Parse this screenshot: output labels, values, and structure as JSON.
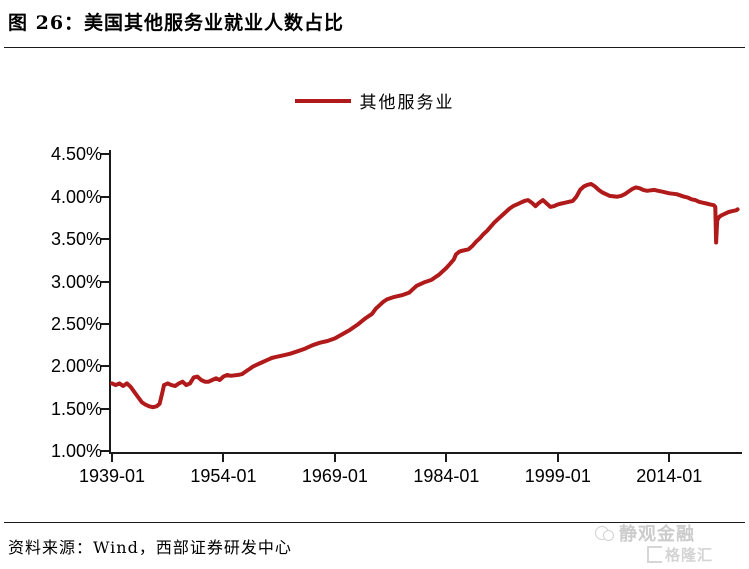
{
  "header": {
    "title": "图 26：美国其他服务业就业人数占比"
  },
  "legend": {
    "label": "其他服务业",
    "line_color": "#b01a1a"
  },
  "footer": {
    "source": "资料来源：Wind，西部证券研发中心"
  },
  "watermark": {
    "brand1": "静观金融",
    "brand2": "格隆汇"
  },
  "chart_data": {
    "type": "line",
    "title": "美国其他服务业就业人数占比",
    "xlabel": "",
    "ylabel": "",
    "grid": false,
    "legend_position": "top-center",
    "line_color": "#b01a1a",
    "y_ticks": [
      4.5,
      4.0,
      3.5,
      3.0,
      2.5,
      2.0,
      1.5,
      1.0
    ],
    "y_tick_labels": [
      "4.50%",
      "4.00%",
      "3.50%",
      "3.00%",
      "2.50%",
      "2.00%",
      "1.50%",
      "1.00%"
    ],
    "ylim": [
      1.0,
      4.5
    ],
    "x_tick_years": [
      1939,
      1954,
      1969,
      1984,
      1999,
      2014
    ],
    "x_tick_labels": [
      "1939-01",
      "1954-01",
      "1969-01",
      "1984-01",
      "1999-01",
      "2014-01"
    ],
    "xlim": [
      1939,
      2023.6
    ],
    "series": [
      {
        "name": "其他服务业",
        "unit": "percent of total employment",
        "x": [
          1939,
          1939.5,
          1940,
          1940.5,
          1941,
          1941.5,
          1942,
          1942.5,
          1943,
          1943.5,
          1944,
          1944.5,
          1945,
          1945.4,
          1945.8,
          1946,
          1946.5,
          1947,
          1947.5,
          1948,
          1948.5,
          1949,
          1949.5,
          1950,
          1950.5,
          1951,
          1951.5,
          1952,
          1952.5,
          1953,
          1953.5,
          1954,
          1954.5,
          1955,
          1956,
          1956.5,
          1957,
          1957.5,
          1958,
          1958.5,
          1959,
          1960,
          1960.5,
          1961,
          1962,
          1963,
          1964,
          1965,
          1966,
          1967,
          1968,
          1969,
          1970,
          1971,
          1971.5,
          1972,
          1973,
          1974,
          1974.5,
          1975,
          1975.5,
          1976,
          1977,
          1978,
          1979,
          1979.5,
          1980,
          1981,
          1982,
          1982.5,
          1983,
          1983.5,
          1984,
          1984.5,
          1985,
          1985.3,
          1985.7,
          1986,
          1987,
          1987.5,
          1988,
          1988.5,
          1989,
          1989.5,
          1990,
          1990.5,
          1991,
          1991.5,
          1992,
          1992.5,
          1993,
          1993.5,
          1994,
          1994.5,
          1995,
          1995.5,
          1996,
          1996.5,
          1997,
          1997.5,
          1998,
          1998.5,
          1999,
          1999.5,
          2000,
          2000.5,
          2001,
          2001.5,
          2002,
          2002.5,
          2003,
          2003.5,
          2004,
          2004.5,
          2005,
          2005.5,
          2006,
          2007,
          2007.5,
          2008,
          2008.5,
          2009,
          2009.5,
          2010,
          2010.5,
          2011,
          2012,
          2012.5,
          2013,
          2014,
          2015,
          2016,
          2016.5,
          2017,
          2017.5,
          2018,
          2018.5,
          2019,
          2019.5,
          2020,
          2020.2,
          2020.3,
          2020.45,
          2020.7,
          2021,
          2021.5,
          2022,
          2022.5,
          2023,
          2023.2
        ],
        "values": [
          1.8,
          1.78,
          1.8,
          1.77,
          1.8,
          1.76,
          1.7,
          1.64,
          1.58,
          1.55,
          1.53,
          1.52,
          1.53,
          1.56,
          1.7,
          1.78,
          1.8,
          1.78,
          1.77,
          1.8,
          1.82,
          1.78,
          1.8,
          1.87,
          1.88,
          1.84,
          1.82,
          1.82,
          1.84,
          1.86,
          1.84,
          1.88,
          1.9,
          1.89,
          1.9,
          1.91,
          1.94,
          1.97,
          2.0,
          2.02,
          2.04,
          2.08,
          2.1,
          2.11,
          2.13,
          2.15,
          2.18,
          2.21,
          2.25,
          2.28,
          2.3,
          2.33,
          2.38,
          2.43,
          2.46,
          2.49,
          2.56,
          2.62,
          2.68,
          2.72,
          2.76,
          2.79,
          2.82,
          2.84,
          2.87,
          2.91,
          2.95,
          2.99,
          3.02,
          3.05,
          3.08,
          3.12,
          3.16,
          3.21,
          3.26,
          3.32,
          3.35,
          3.36,
          3.38,
          3.42,
          3.47,
          3.51,
          3.56,
          3.6,
          3.65,
          3.7,
          3.74,
          3.78,
          3.82,
          3.86,
          3.89,
          3.91,
          3.93,
          3.95,
          3.96,
          3.93,
          3.89,
          3.93,
          3.96,
          3.92,
          3.88,
          3.89,
          3.91,
          3.92,
          3.93,
          3.94,
          3.95,
          4.0,
          4.08,
          4.12,
          4.14,
          4.15,
          4.12,
          4.08,
          4.05,
          4.03,
          4.01,
          4.0,
          4.01,
          4.03,
          4.06,
          4.09,
          4.11,
          4.1,
          4.08,
          4.07,
          4.08,
          4.07,
          4.06,
          4.04,
          4.03,
          4.0,
          3.99,
          3.97,
          3.96,
          3.94,
          3.93,
          3.92,
          3.91,
          3.9,
          3.88,
          3.46,
          3.72,
          3.76,
          3.78,
          3.8,
          3.82,
          3.83,
          3.84,
          3.85
        ]
      }
    ]
  }
}
